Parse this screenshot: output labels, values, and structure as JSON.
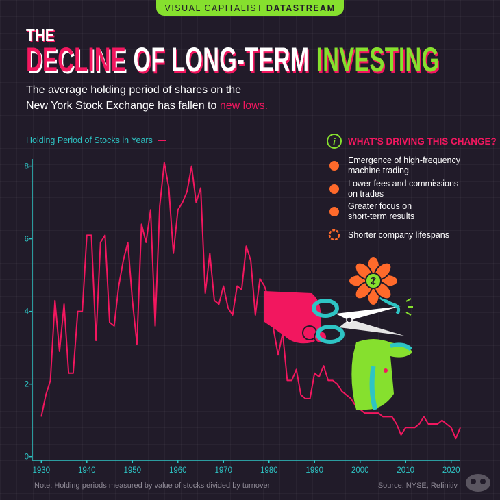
{
  "header": {
    "brand": "VISUAL CAPITALIST",
    "brand_bold": "DATASTREAM",
    "kicker": "THE",
    "title_parts": [
      "DECLINE",
      "OF LONG-TERM",
      "INVESTING"
    ],
    "subtitle_lines": [
      "The average holding period of shares on the",
      "New York Stock Exchange has fallen to"
    ],
    "subtitle_highlight": "new lows."
  },
  "sidebar": {
    "heading": "WHAT'S DRIVING THIS CHANGE?",
    "items": [
      {
        "lines": [
          "Emergence of high-frequency",
          "machine trading"
        ]
      },
      {
        "lines": [
          "Lower fees and commissions",
          "on trades"
        ]
      },
      {
        "lines": [
          "Greater focus on",
          "short-term results"
        ]
      },
      {
        "lines": [
          "Shorter company lifespans"
        ]
      }
    ]
  },
  "chart_data": {
    "type": "line",
    "x": [
      1930,
      1931,
      1932,
      1933,
      1934,
      1935,
      1936,
      1937,
      1938,
      1939,
      1940,
      1941,
      1942,
      1943,
      1944,
      1945,
      1946,
      1947,
      1948,
      1949,
      1950,
      1951,
      1952,
      1953,
      1954,
      1955,
      1956,
      1957,
      1958,
      1959,
      1960,
      1961,
      1962,
      1963,
      1964,
      1965,
      1966,
      1967,
      1968,
      1969,
      1970,
      1971,
      1972,
      1973,
      1974,
      1975,
      1976,
      1977,
      1978,
      1979,
      1980,
      1981,
      1982,
      1983,
      1984,
      1985,
      1986,
      1987,
      1988,
      1989,
      1990,
      1991,
      1992,
      1993,
      1994,
      1995,
      1996,
      1997,
      1998,
      1999,
      2000,
      2001,
      2002,
      2003,
      2004,
      2005,
      2006,
      2007,
      2008,
      2009,
      2010,
      2011,
      2012,
      2013,
      2014,
      2015,
      2016,
      2017,
      2018,
      2019,
      2020,
      2021,
      2022
    ],
    "series": [
      {
        "name": "Holding Period of Stocks in Years",
        "color": "#f2175f",
        "values": [
          1.1,
          1.7,
          2.1,
          4.3,
          2.9,
          4.2,
          2.3,
          2.3,
          4.0,
          4.0,
          6.1,
          6.1,
          3.2,
          5.9,
          6.1,
          3.7,
          3.6,
          4.7,
          5.4,
          5.9,
          4.3,
          3.1,
          6.4,
          5.9,
          6.8,
          3.6,
          6.9,
          8.1,
          7.4,
          5.6,
          6.8,
          7.0,
          7.3,
          8.0,
          7.0,
          7.4,
          4.5,
          5.6,
          4.3,
          4.2,
          4.7,
          4.1,
          3.9,
          4.7,
          4.6,
          5.8,
          5.4,
          3.9,
          4.9,
          4.7,
          4.3,
          3.5,
          2.8,
          3.4,
          2.1,
          2.1,
          2.4,
          1.7,
          1.6,
          1.6,
          2.3,
          2.2,
          2.5,
          2.1,
          2.1,
          2.0,
          1.8,
          1.7,
          1.6,
          1.4,
          1.3,
          1.2,
          1.2,
          1.2,
          1.2,
          1.1,
          1.1,
          1.1,
          0.9,
          0.6,
          0.8,
          0.8,
          0.8,
          0.9,
          1.1,
          0.9,
          0.9,
          0.9,
          1.0,
          0.9,
          0.8,
          0.5,
          0.8
        ]
      }
    ],
    "xlim": [
      1928,
      2022
    ],
    "ylim": [
      -0.1,
      8.2
    ],
    "xticks": [
      1930,
      1940,
      1950,
      1960,
      1970,
      1980,
      1990,
      2000,
      2010,
      2020
    ],
    "yticks": [
      0,
      2,
      4,
      6,
      8
    ],
    "axis_color": "#2ec4c4",
    "note": "Note: Holding periods measured by value of stocks divided by turnover",
    "source": "Source: NYSE, Refinitiv"
  }
}
